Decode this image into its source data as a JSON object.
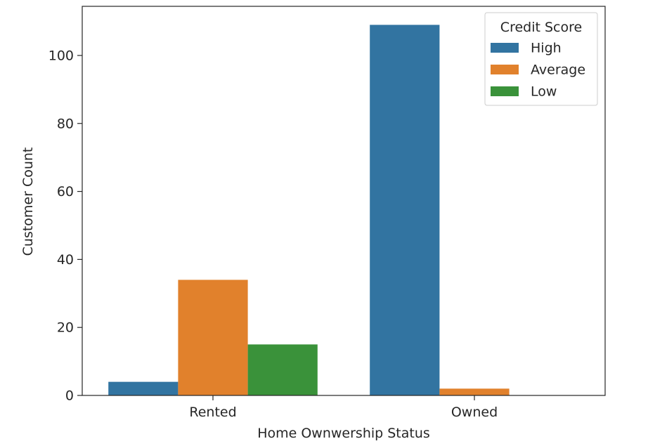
{
  "chart_data": {
    "type": "bar",
    "title": "",
    "xlabel": "Home Ownwership Status",
    "ylabel": "Customer Count",
    "categories": [
      "Rented",
      "Owned"
    ],
    "series": [
      {
        "name": "High",
        "color": "#3274a1",
        "values": [
          4,
          109
        ]
      },
      {
        "name": "Average",
        "color": "#e1812c",
        "values": [
          34,
          2
        ]
      },
      {
        "name": "Low",
        "color": "#3a923a",
        "values": [
          15,
          0
        ]
      }
    ],
    "yticks": [
      0,
      20,
      40,
      60,
      80,
      100
    ],
    "ylim": [
      0,
      114.45
    ],
    "grid": false,
    "legend": {
      "title": "Credit Score",
      "placement": "top-right"
    }
  }
}
